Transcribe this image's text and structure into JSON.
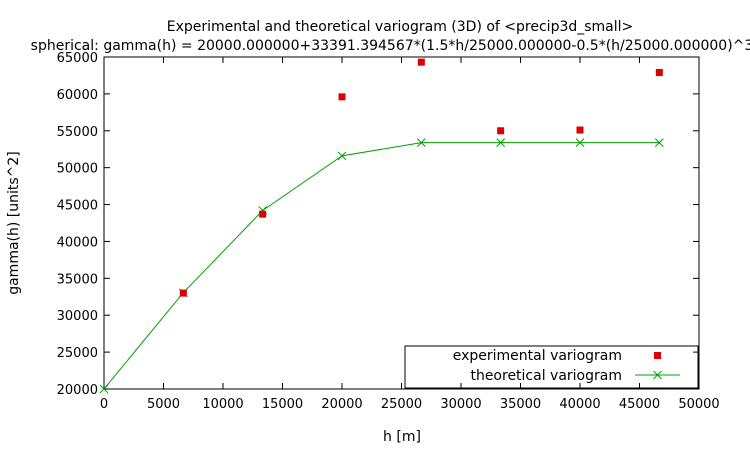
{
  "chart_data": {
    "type": "scatter",
    "title": "Experimental and theoretical variogram (3D) of <precip3d_small>",
    "subtitle": "spherical: gamma(h) = 20000.000000+33391.394567*(1.5*h/25000.000000-0.5*(h/25000.000000)^3",
    "xlabel": "h [m]",
    "ylabel": "gamma(h) [units^2]",
    "xlim": [
      0,
      50000
    ],
    "ylim": [
      20000,
      65000
    ],
    "xticks": [
      "0",
      "5000",
      "10000",
      "15000",
      "20000",
      "25000",
      "30000",
      "35000",
      "40000",
      "45000",
      "50000"
    ],
    "yticks": [
      "20000",
      "25000",
      "30000",
      "35000",
      "40000",
      "45000",
      "50000",
      "55000",
      "60000",
      "65000"
    ],
    "grid": false,
    "legend_position": "bottom-right",
    "series": [
      {
        "name": "experimental variogram",
        "style": "points",
        "marker": "square",
        "color": "#dd0000",
        "x": [
          6667,
          13333,
          20000,
          26667,
          33333,
          40000,
          46667
        ],
        "y": [
          33000,
          43700,
          59600,
          64300,
          55000,
          55100,
          62900
        ]
      },
      {
        "name": "theoretical variogram",
        "style": "linespoints",
        "marker": "x",
        "color": "#00a000",
        "x": [
          0,
          6667,
          13333,
          20000,
          26667,
          33333,
          40000,
          46667
        ],
        "y": [
          20000,
          33050,
          44200,
          51600,
          53391,
          53391,
          53391,
          53391
        ]
      }
    ]
  }
}
